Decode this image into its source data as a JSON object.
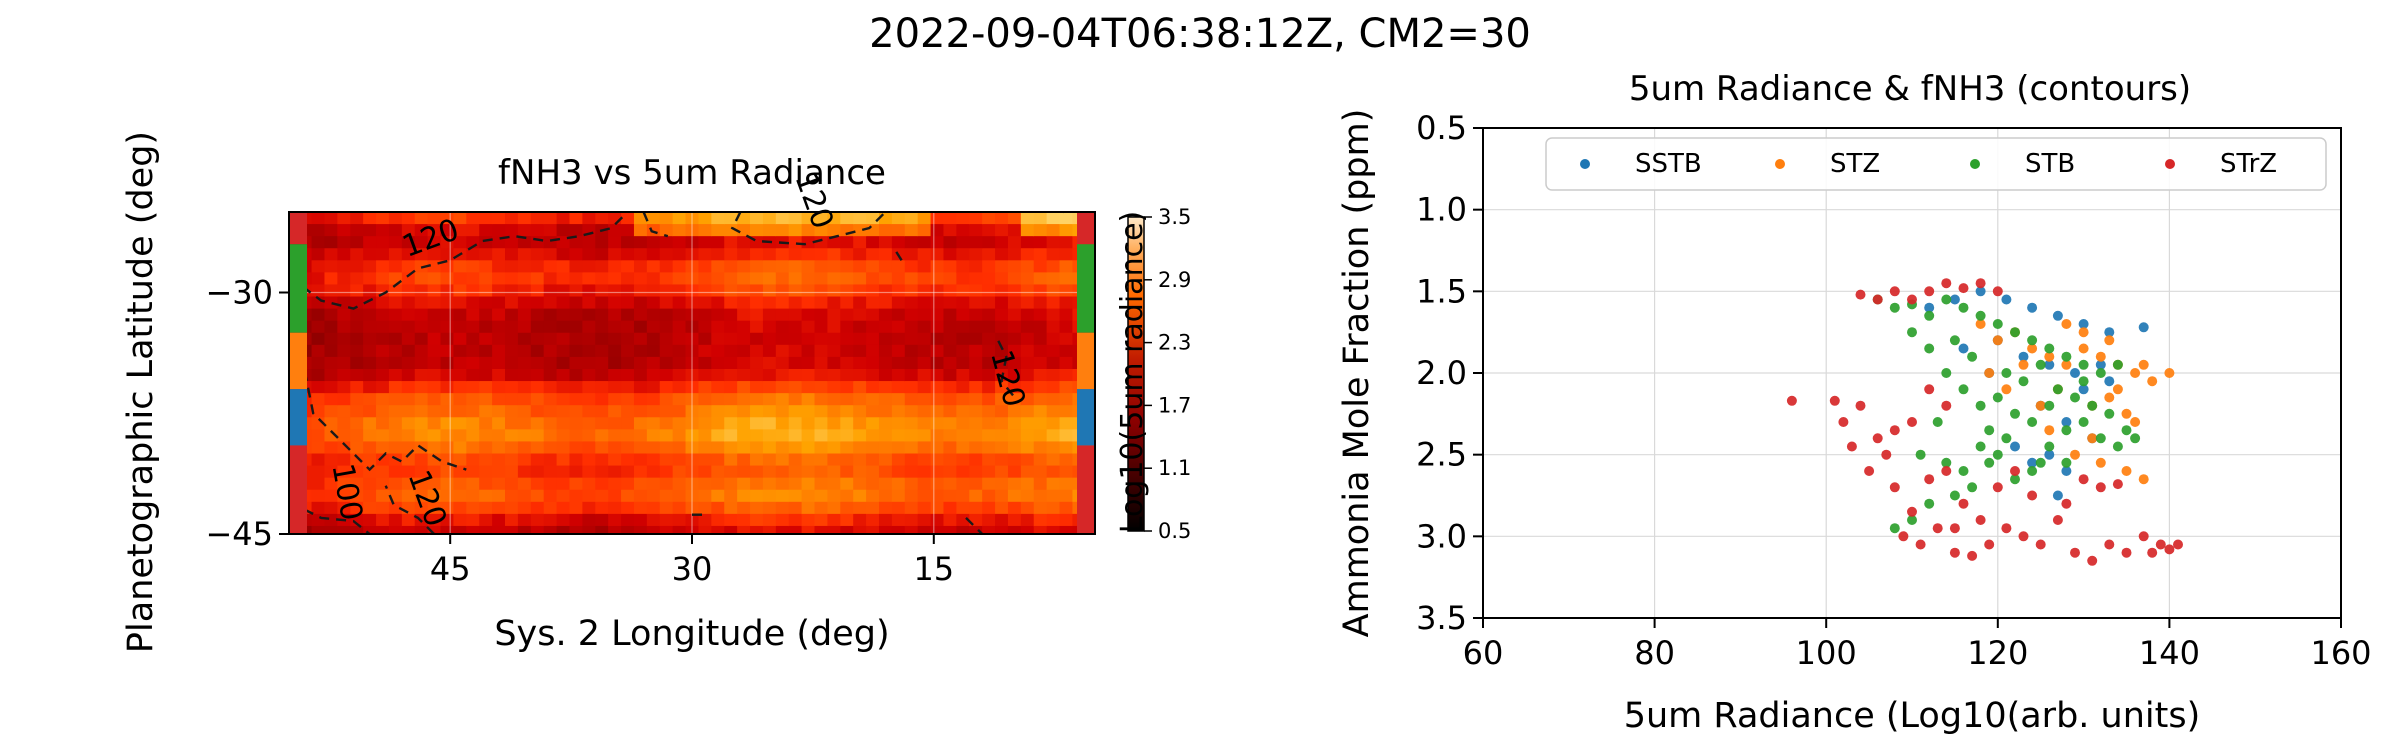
{
  "figure": {
    "suptitle": "2022-09-04T06:38:12Z, CM2=30"
  },
  "chart_data": [
    {
      "type": "heatmap",
      "title": "fNH3 vs 5um Radiance",
      "xlabel": "Sys. 2 Longitude (deg)",
      "ylabel": "Planetographic Latitude (deg)",
      "x_range": [
        60,
        0
      ],
      "xlim": [
        55,
        5
      ],
      "x_ticks": [
        "45",
        "30",
        "15"
      ],
      "x_tick_values": [
        45,
        30,
        15
      ],
      "ylim": [
        -45,
        -25
      ],
      "y_ticks": [
        "−30",
        "−45"
      ],
      "y_tick_values": [
        -30,
        -45
      ],
      "grid": true,
      "colormap": "gist_heat",
      "colorbar": {
        "label": "Log10(5um radiance)",
        "range": [
          0.5,
          3.5
        ],
        "ticks": [
          "3.5",
          "2.9",
          "2.3",
          "1.7",
          "1.1",
          "0.5"
        ],
        "tick_values": [
          3.5,
          2.9,
          2.3,
          1.7,
          1.1,
          0.5
        ]
      },
      "contour_labels": [
        {
          "text": "120",
          "x": 46,
          "y": -27.2
        },
        {
          "text": "120",
          "x": 23,
          "y": -24.5
        },
        {
          "text": "120",
          "x": 11,
          "y": -35.5
        },
        {
          "text": "100",
          "x": 52,
          "y": -42.5
        },
        {
          "text": "120",
          "x": 47,
          "y": -43.0
        }
      ],
      "contour_color": "#1a1a1a",
      "band_markers": [
        {
          "name": "STrZ",
          "lat": [
            -25,
            -27
          ],
          "color": "#d62728"
        },
        {
          "name": "STB",
          "lat": [
            -27,
            -32.5
          ],
          "color": "#2ca02c"
        },
        {
          "name": "STZ",
          "lat": [
            -32.5,
            -36
          ],
          "color": "#ff7f0e"
        },
        {
          "name": "SSTB",
          "lat": [
            -36,
            -39.5
          ],
          "color": "#1f77b4"
        },
        {
          "name": "STrZ",
          "lat": [
            -39.5,
            -45
          ],
          "color": "#d62728"
        }
      ],
      "right_band_markers": [
        {
          "name": "STrZ",
          "lat": [
            -25,
            -27
          ],
          "color": "#d62728"
        },
        {
          "name": "STB",
          "lat": [
            -27,
            -32.5
          ],
          "color": "#2ca02c"
        },
        {
          "name": "STZ",
          "lat": [
            -32.5,
            -36
          ],
          "color": "#ff7f0e"
        },
        {
          "name": "SSTB",
          "lat": [
            -36,
            -39.5
          ],
          "color": "#1f77b4"
        },
        {
          "name": "STrZ",
          "lat": [
            -39.5,
            -45
          ],
          "color": "#d62728"
        }
      ],
      "bright_bands": [
        {
          "lat": -29.0,
          "width": 1.6,
          "amp": 0.55
        },
        {
          "lat": -36.5,
          "width": 1.2,
          "amp": 0.45
        },
        {
          "lat": -38.8,
          "width": 1.8,
          "amp": 1.0
        },
        {
          "lat": -42.5,
          "width": 1.6,
          "amp": 0.75
        },
        {
          "lat": -25.0,
          "width": 1.0,
          "amp": 0.55
        }
      ],
      "contours": [
        [
          [
            55,
            -29
          ],
          [
            53,
            -30.5
          ],
          [
            51,
            -31
          ],
          [
            49,
            -30
          ],
          [
            47,
            -28.5
          ],
          [
            45,
            -28
          ],
          [
            43,
            -26.8
          ],
          [
            41,
            -26.5
          ],
          [
            39,
            -26.8
          ],
          [
            37,
            -26.5
          ],
          [
            35,
            -26
          ],
          [
            34,
            -25
          ]
        ],
        [
          [
            55,
            -33
          ],
          [
            54,
            -35
          ],
          [
            53.5,
            -37.5
          ],
          [
            52,
            -39
          ],
          [
            51,
            -40
          ],
          [
            50,
            -41
          ],
          [
            49,
            -40
          ],
          [
            48,
            -40.5
          ],
          [
            47,
            -39.5
          ],
          [
            45.5,
            -40.5
          ],
          [
            44,
            -41
          ]
        ],
        [
          [
            55,
            -43
          ],
          [
            53,
            -44
          ],
          [
            51,
            -44.2
          ],
          [
            50,
            -45
          ]
        ],
        [
          [
            46,
            -45
          ],
          [
            47,
            -44
          ],
          [
            48.5,
            -43.2
          ],
          [
            49,
            -42
          ]
        ],
        [
          [
            27,
            -25
          ],
          [
            27.5,
            -26
          ],
          [
            26,
            -26.8
          ],
          [
            23,
            -27
          ],
          [
            21,
            -26.5
          ],
          [
            19,
            -26
          ],
          [
            18,
            -25
          ]
        ],
        [
          [
            33,
            -25
          ],
          [
            32.5,
            -26.2
          ],
          [
            31.5,
            -26.5
          ]
        ],
        [
          [
            11,
            -33
          ],
          [
            10.5,
            -34
          ],
          [
            10.8,
            -35.5
          ],
          [
            10,
            -36.5
          ]
        ],
        [
          [
            17,
            -28
          ],
          [
            17.5,
            -27.2
          ]
        ],
        [
          [
            30,
            -43.8
          ],
          [
            29,
            -43.8
          ]
        ],
        [
          [
            13,
            -44
          ],
          [
            12,
            -45
          ]
        ],
        [
          [
            7,
            -25
          ],
          [
            6,
            -24.8
          ]
        ]
      ]
    },
    {
      "type": "scatter",
      "title": "5um Radiance & fNH3 (contours)",
      "xlabel": "5um Radiance (Log10(arb. units)",
      "ylabel": "Ammonia Mole Fraction (ppm)",
      "xlim": [
        60,
        160
      ],
      "x_ticks": [
        "60",
        "80",
        "100",
        "120",
        "140",
        "160"
      ],
      "x_tick_values": [
        60,
        80,
        100,
        120,
        140,
        160
      ],
      "ylim": [
        3.5,
        0.5
      ],
      "y_ticks": [
        "0.5",
        "1.0",
        "1.5",
        "2.0",
        "2.5",
        "3.0",
        "3.5"
      ],
      "y_tick_values": [
        0.5,
        1.0,
        1.5,
        2.0,
        2.5,
        3.0,
        3.5
      ],
      "y_inverted": true,
      "grid": true,
      "legend": "top",
      "series": [
        {
          "name": "SSTB",
          "color": "#1f77b4",
          "x_center": 124,
          "x_spread": 6,
          "y_center": 1.9,
          "y_spread": 0.35,
          "points": [
            [
              112,
              1.6
            ],
            [
              115,
              1.55
            ],
            [
              118,
              1.5
            ],
            [
              121,
              1.55
            ],
            [
              124,
              1.6
            ],
            [
              127,
              1.65
            ],
            [
              130,
              1.7
            ],
            [
              133,
              1.75
            ],
            [
              137,
              1.72
            ],
            [
              120,
              1.8
            ],
            [
              123,
              1.9
            ],
            [
              126,
              1.95
            ],
            [
              129,
              2.0
            ],
            [
              132,
              1.95
            ],
            [
              125,
              2.2
            ],
            [
              128,
              2.3
            ],
            [
              126,
              2.5
            ],
            [
              128,
              2.6
            ],
            [
              122,
              2.45
            ],
            [
              130,
              2.1
            ],
            [
              133,
              2.05
            ],
            [
              119,
              2.0
            ],
            [
              116,
              1.85
            ],
            [
              127,
              2.75
            ],
            [
              124,
              2.55
            ],
            [
              131,
              2.4
            ]
          ]
        },
        {
          "name": "STZ",
          "color": "#ff7f0e",
          "x_center": 128,
          "x_spread": 6,
          "y_center": 2.0,
          "y_spread": 0.3,
          "points": [
            [
              118,
              1.7
            ],
            [
              120,
              1.8
            ],
            [
              122,
              1.75
            ],
            [
              124,
              1.85
            ],
            [
              126,
              1.9
            ],
            [
              128,
              1.95
            ],
            [
              130,
              1.85
            ],
            [
              132,
              1.9
            ],
            [
              134,
              1.95
            ],
            [
              136,
              2.0
            ],
            [
              138,
              2.05
            ],
            [
              140,
              2.0
            ],
            [
              133,
              2.15
            ],
            [
              135,
              2.25
            ],
            [
              136,
              2.3
            ],
            [
              131,
              2.4
            ],
            [
              129,
              2.5
            ],
            [
              135,
              2.6
            ],
            [
              137,
              2.65
            ],
            [
              127,
              2.1
            ],
            [
              125,
              2.2
            ],
            [
              123,
              1.95
            ],
            [
              121,
              2.1
            ],
            [
              130,
              1.75
            ],
            [
              128,
              1.7
            ],
            [
              133,
              1.8
            ],
            [
              119,
              2.0
            ],
            [
              126,
              2.35
            ],
            [
              132,
              2.55
            ],
            [
              137,
              1.95
            ],
            [
              134,
              2.1
            ],
            [
              131,
              2.2
            ]
          ]
        },
        {
          "name": "STB",
          "color": "#2ca02c",
          "x_center": 122,
          "x_spread": 7,
          "y_center": 2.1,
          "y_spread": 0.4,
          "points": [
            [
              106,
              1.55
            ],
            [
              108,
              1.6
            ],
            [
              110,
              1.58
            ],
            [
              112,
              1.65
            ],
            [
              114,
              1.55
            ],
            [
              116,
              1.6
            ],
            [
              118,
              1.65
            ],
            [
              120,
              1.7
            ],
            [
              122,
              1.75
            ],
            [
              124,
              1.8
            ],
            [
              126,
              1.85
            ],
            [
              128,
              1.9
            ],
            [
              130,
              1.95
            ],
            [
              132,
              2.0
            ],
            [
              134,
              1.95
            ],
            [
              110,
              1.75
            ],
            [
              112,
              1.85
            ],
            [
              114,
              2.0
            ],
            [
              116,
              2.1
            ],
            [
              118,
              2.2
            ],
            [
              120,
              2.15
            ],
            [
              122,
              2.25
            ],
            [
              124,
              2.3
            ],
            [
              126,
              2.2
            ],
            [
              128,
              2.35
            ],
            [
              130,
              2.3
            ],
            [
              132,
              2.4
            ],
            [
              120,
              2.5
            ],
            [
              118,
              2.45
            ],
            [
              116,
              2.6
            ],
            [
              114,
              2.55
            ],
            [
              112,
              2.8
            ],
            [
              110,
              2.9
            ],
            [
              108,
              2.95
            ],
            [
              115,
              2.75
            ],
            [
              117,
              2.7
            ],
            [
              119,
              2.35
            ],
            [
              121,
              2.0
            ],
            [
              123,
              2.05
            ],
            [
              125,
              1.95
            ],
            [
              127,
              2.1
            ],
            [
              129,
              2.15
            ],
            [
              131,
              2.2
            ],
            [
              133,
              2.25
            ],
            [
              135,
              2.35
            ],
            [
              126,
              2.45
            ],
            [
              128,
              2.55
            ],
            [
              124,
              2.6
            ],
            [
              122,
              2.65
            ],
            [
              119,
              2.55
            ],
            [
              113,
              2.3
            ],
            [
              111,
              2.5
            ],
            [
              117,
              1.9
            ],
            [
              115,
              1.8
            ],
            [
              130,
              2.05
            ],
            [
              134,
              2.45
            ],
            [
              136,
              2.4
            ],
            [
              121,
              2.4
            ],
            [
              125,
              2.55
            ]
          ]
        },
        {
          "name": "STrZ",
          "color": "#d62728",
          "x_center": 116,
          "x_spread": 12,
          "y_center": 2.3,
          "y_spread": 0.7,
          "points": [
            [
              96,
              2.17
            ],
            [
              101,
              2.17
            ],
            [
              102,
              2.3
            ],
            [
              104,
              2.2
            ],
            [
              103,
              2.45
            ],
            [
              105,
              2.6
            ],
            [
              107,
              2.5
            ],
            [
              108,
              2.7
            ],
            [
              110,
              2.85
            ],
            [
              109,
              3.0
            ],
            [
              111,
              3.05
            ],
            [
              113,
              2.95
            ],
            [
              115,
              3.1
            ],
            [
              117,
              3.12
            ],
            [
              119,
              3.05
            ],
            [
              121,
              2.95
            ],
            [
              123,
              3.0
            ],
            [
              125,
              3.05
            ],
            [
              127,
              2.9
            ],
            [
              129,
              3.1
            ],
            [
              131,
              3.15
            ],
            [
              133,
              3.05
            ],
            [
              135,
              3.1
            ],
            [
              137,
              3.0
            ],
            [
              139,
              3.05
            ],
            [
              140,
              3.08
            ],
            [
              141,
              3.05
            ],
            [
              138,
              3.1
            ],
            [
              104,
              1.52
            ],
            [
              106,
              1.55
            ],
            [
              108,
              1.5
            ],
            [
              110,
              1.55
            ],
            [
              112,
              1.5
            ],
            [
              114,
              1.45
            ],
            [
              116,
              1.48
            ],
            [
              118,
              1.45
            ],
            [
              120,
              1.5
            ],
            [
              114,
              2.6
            ],
            [
              116,
              2.8
            ],
            [
              118,
              2.9
            ],
            [
              120,
              2.7
            ],
            [
              112,
              2.65
            ],
            [
              106,
              2.4
            ],
            [
              110,
              2.3
            ],
            [
              130,
              2.65
            ],
            [
              132,
              2.7
            ],
            [
              134,
              2.68
            ],
            [
              128,
              2.8
            ],
            [
              124,
              2.75
            ],
            [
              122,
              2.6
            ],
            [
              114,
              2.2
            ],
            [
              112,
              2.1
            ],
            [
              108,
              2.35
            ],
            [
              115,
              2.95
            ]
          ]
        }
      ]
    }
  ]
}
